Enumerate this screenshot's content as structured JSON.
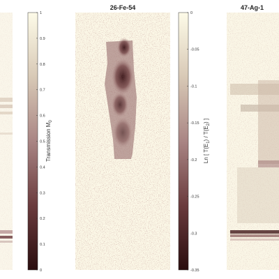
{
  "colormap": {
    "low": "#2a0d0e",
    "mid": "#9b6a6a",
    "high": "#fdfbe8"
  },
  "chart_data": [
    {
      "type": "heatmap",
      "panel": "left",
      "title": "",
      "colorbar": {
        "label": "Transmission M",
        "label_subscript": "0",
        "range": [
          0,
          1
        ],
        "ticks": [
          "0",
          "0.1",
          "0.2",
          "0.3",
          "0.4",
          "0.5",
          "0.6",
          "0.7",
          "0.8",
          "0.9",
          "1"
        ]
      }
    },
    {
      "type": "heatmap",
      "panel": "middle",
      "title": "26-Fe-54",
      "colorbar": {
        "label": "Ln [ T(E",
        "label_parts": [
          "1",
          ") / T(E",
          "2",
          ") ]"
        ],
        "range": [
          -0.35,
          0
        ],
        "ticks": [
          "0",
          "-0.05",
          "-0.1",
          "-0.15",
          "-0.2",
          "-0.25",
          "-0.3",
          "-0.35"
        ]
      }
    },
    {
      "type": "heatmap",
      "panel": "right",
      "title": "47-Ag-1"
    }
  ]
}
